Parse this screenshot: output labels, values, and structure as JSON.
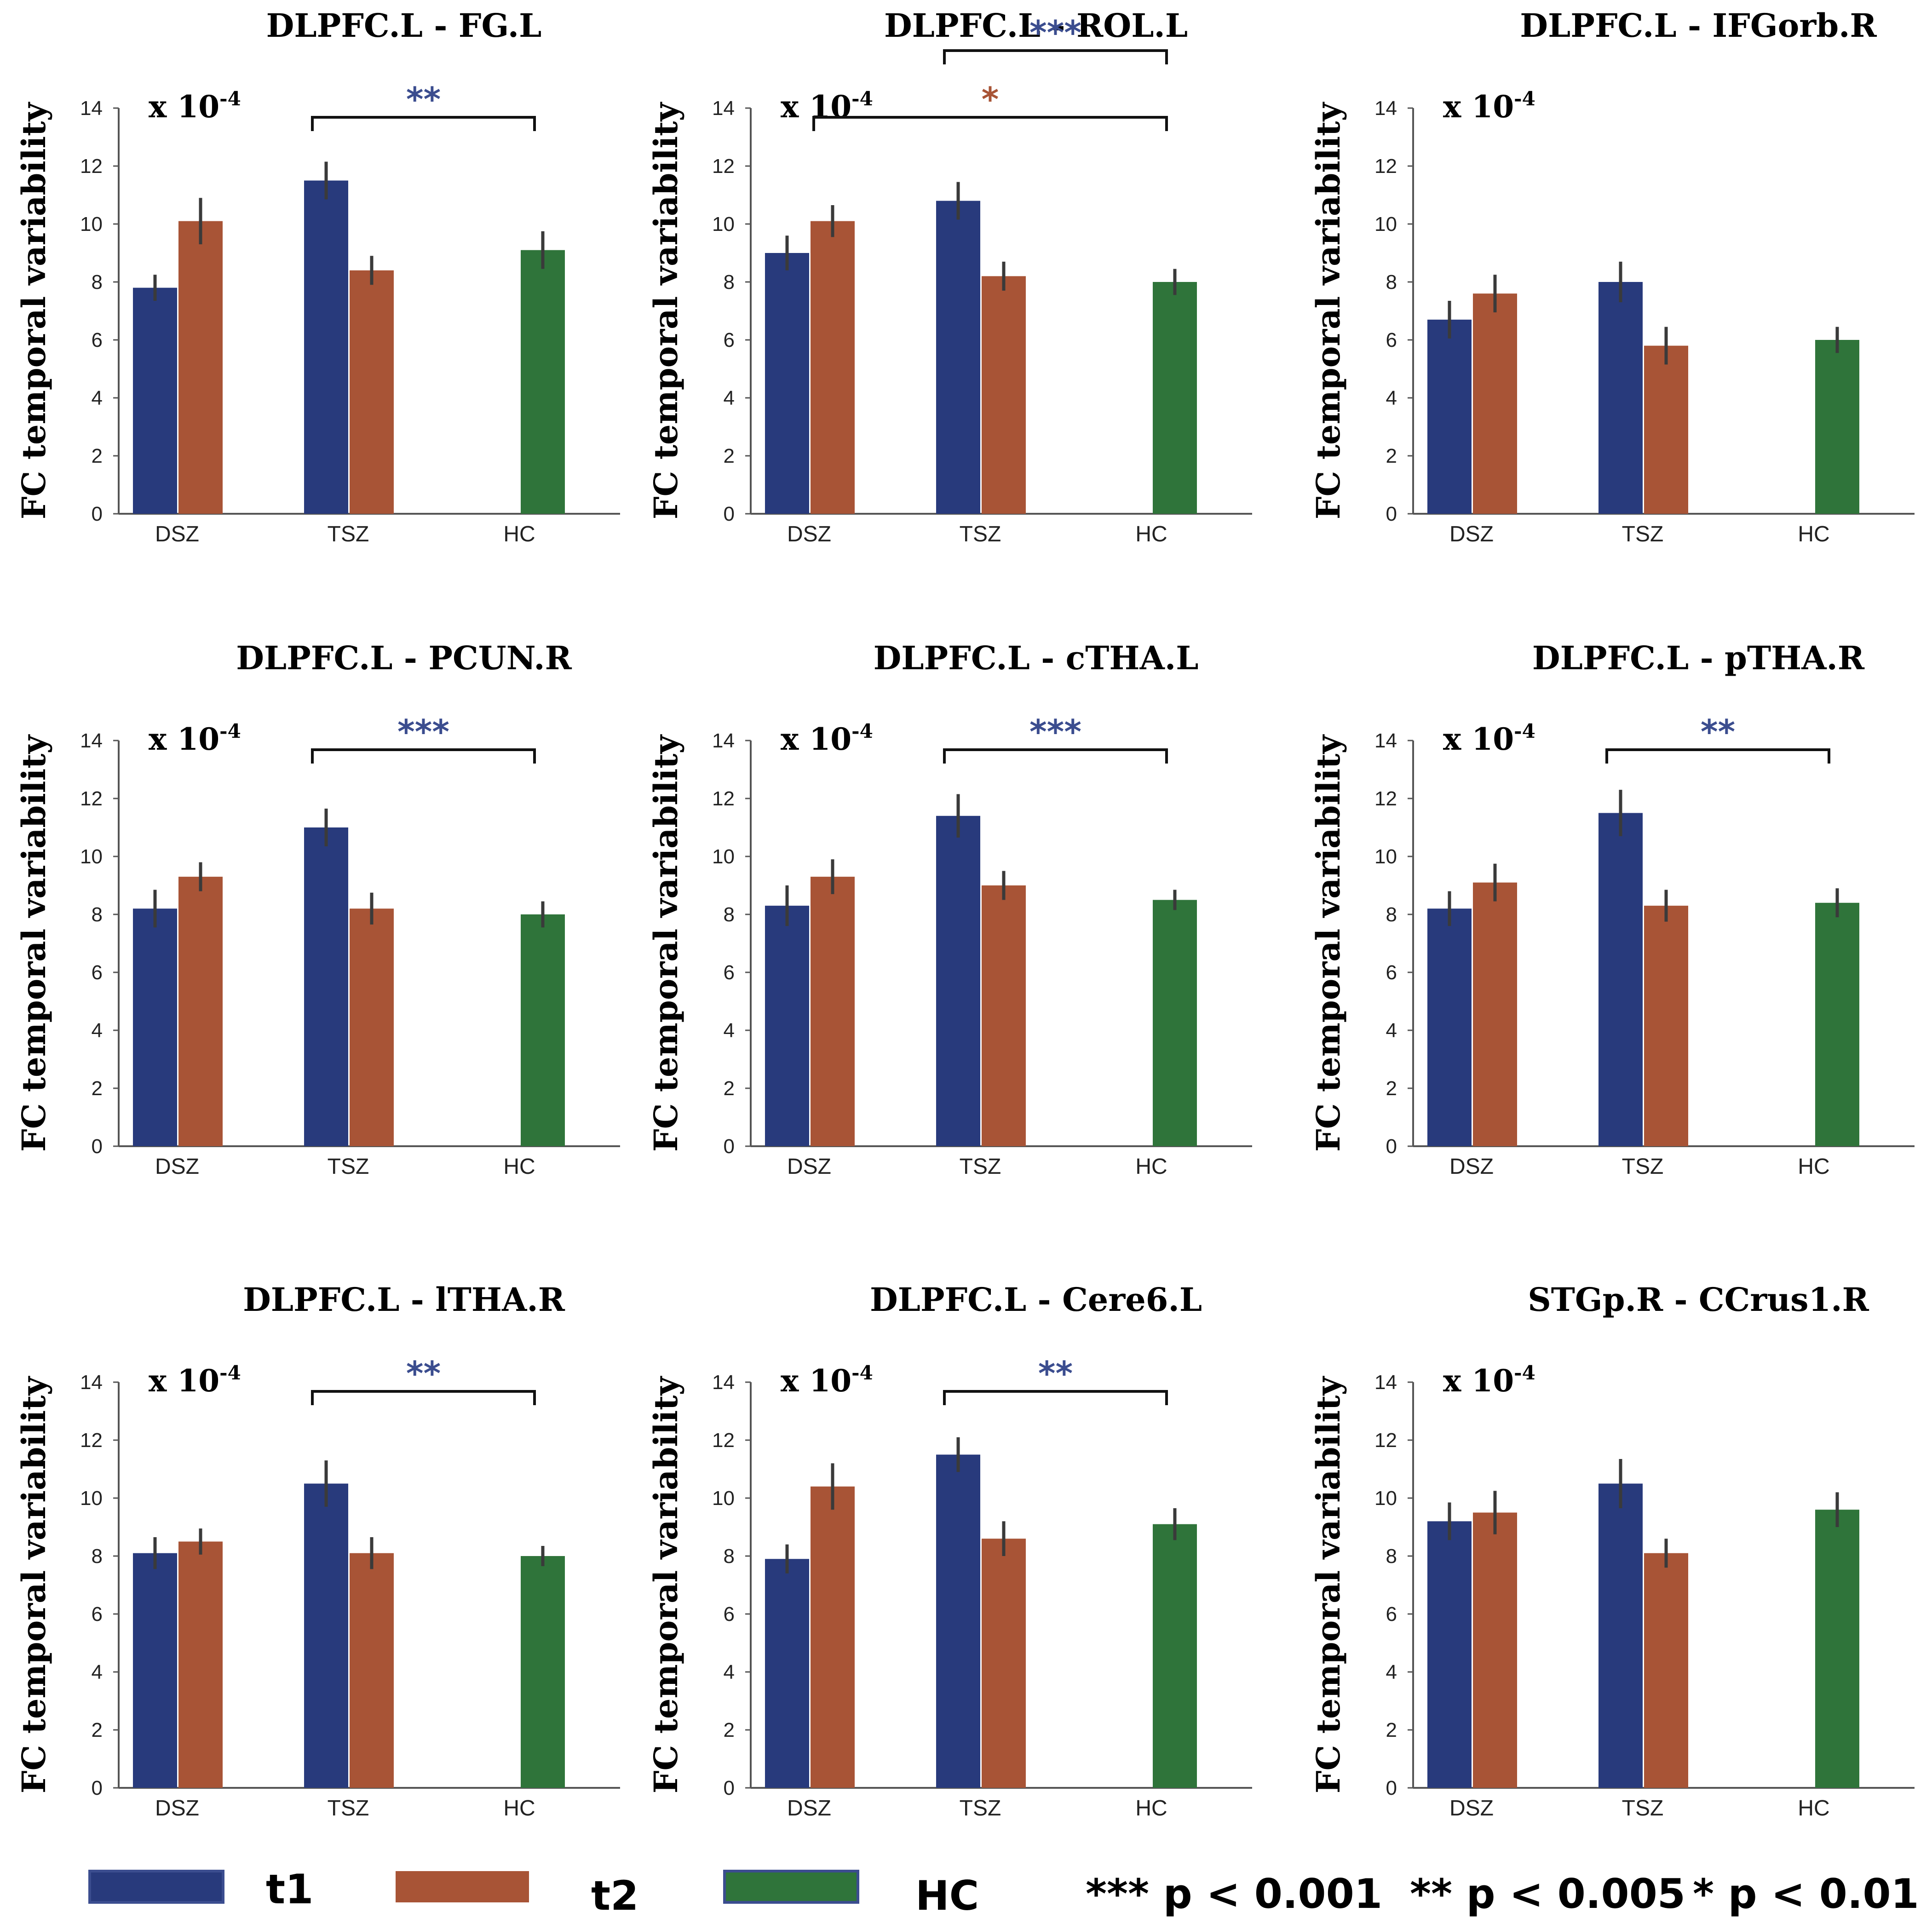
{
  "colors": {
    "t1": "#283a7c",
    "t2": "#a85436",
    "HC": "#2f743a",
    "sig_blue": "#3b4d8f",
    "sig_orange": "#a85436",
    "axis": "#555555",
    "errorbar": "#3a3a3a"
  },
  "scale_label": {
    "base": "x 10",
    "exponent": "-4"
  },
  "chart_data": [
    {
      "type": "bar",
      "title": "DLPFC.L - FG.L",
      "ylabel": "FC temporal variability",
      "ylim": [
        0,
        14
      ],
      "yticks": [
        "0",
        "2",
        "4",
        "6",
        "8",
        "10",
        "12",
        "14"
      ],
      "categories": [
        "DSZ",
        "TSZ",
        "HC"
      ],
      "series": [
        {
          "name": "t1",
          "values": [
            7.8,
            11.5,
            null
          ],
          "errors": [
            0.45,
            0.65,
            null
          ]
        },
        {
          "name": "t2",
          "values": [
            10.1,
            8.4,
            null
          ],
          "errors": [
            0.8,
            0.5,
            null
          ]
        },
        {
          "name": "HC",
          "values": [
            null,
            null,
            9.1
          ],
          "errors": [
            null,
            null,
            0.65
          ]
        }
      ],
      "annotations": [
        {
          "from": "TSZ",
          "to": "HC",
          "label": "**",
          "color": "sig_blue",
          "level": 0
        }
      ]
    },
    {
      "type": "bar",
      "title": "DLPFC.L - ROL.L",
      "ylabel": "FC temporal variability",
      "ylim": [
        0,
        14
      ],
      "yticks": [
        "0",
        "2",
        "4",
        "6",
        "8",
        "10",
        "12",
        "14"
      ],
      "categories": [
        "DSZ",
        "TSZ",
        "HC"
      ],
      "series": [
        {
          "name": "t1",
          "values": [
            9.0,
            10.8,
            null
          ],
          "errors": [
            0.6,
            0.65,
            null
          ]
        },
        {
          "name": "t2",
          "values": [
            10.1,
            8.2,
            null
          ],
          "errors": [
            0.55,
            0.5,
            null
          ]
        },
        {
          "name": "HC",
          "values": [
            null,
            null,
            8.0
          ],
          "errors": [
            null,
            null,
            0.45
          ]
        }
      ],
      "annotations": [
        {
          "from": "TSZ",
          "to": "HC",
          "label": "***",
          "color": "sig_blue",
          "level": 1
        },
        {
          "from": "DSZ",
          "to": "HC",
          "label": "*",
          "color": "sig_orange",
          "level": 0
        }
      ]
    },
    {
      "type": "bar",
      "title": "DLPFC.L - IFGorb.R",
      "ylabel": "FC temporal variability",
      "ylim": [
        0,
        14
      ],
      "yticks": [
        "0",
        "2",
        "4",
        "6",
        "8",
        "10",
        "12",
        "14"
      ],
      "categories": [
        "DSZ",
        "TSZ",
        "HC"
      ],
      "series": [
        {
          "name": "t1",
          "values": [
            6.7,
            8.0,
            null
          ],
          "errors": [
            0.65,
            0.7,
            null
          ]
        },
        {
          "name": "t2",
          "values": [
            7.6,
            5.8,
            null
          ],
          "errors": [
            0.65,
            0.65,
            null
          ]
        },
        {
          "name": "HC",
          "values": [
            null,
            null,
            6.0
          ],
          "errors": [
            null,
            null,
            0.45
          ]
        }
      ],
      "annotations": []
    },
    {
      "type": "bar",
      "title": "DLPFC.L - PCUN.R",
      "ylabel": "FC temporal variability",
      "ylim": [
        0,
        14
      ],
      "yticks": [
        "0",
        "2",
        "4",
        "6",
        "8",
        "10",
        "12",
        "14"
      ],
      "categories": [
        "DSZ",
        "TSZ",
        "HC"
      ],
      "series": [
        {
          "name": "t1",
          "values": [
            8.2,
            11.0,
            null
          ],
          "errors": [
            0.65,
            0.65,
            null
          ]
        },
        {
          "name": "t2",
          "values": [
            9.3,
            8.2,
            null
          ],
          "errors": [
            0.5,
            0.55,
            null
          ]
        },
        {
          "name": "HC",
          "values": [
            null,
            null,
            8.0
          ],
          "errors": [
            null,
            null,
            0.45
          ]
        }
      ],
      "annotations": [
        {
          "from": "TSZ",
          "to": "HC",
          "label": "***",
          "color": "sig_blue",
          "level": 0
        }
      ]
    },
    {
      "type": "bar",
      "title": "DLPFC.L - cTHA.L",
      "ylabel": "FC temporal variability",
      "ylim": [
        0,
        14
      ],
      "yticks": [
        "0",
        "2",
        "4",
        "6",
        "8",
        "10",
        "12",
        "14"
      ],
      "categories": [
        "DSZ",
        "TSZ",
        "HC"
      ],
      "series": [
        {
          "name": "t1",
          "values": [
            8.3,
            11.4,
            null
          ],
          "errors": [
            0.7,
            0.75,
            null
          ]
        },
        {
          "name": "t2",
          "values": [
            9.3,
            9.0,
            null
          ],
          "errors": [
            0.6,
            0.5,
            null
          ]
        },
        {
          "name": "HC",
          "values": [
            null,
            null,
            8.5
          ],
          "errors": [
            null,
            null,
            0.35
          ]
        }
      ],
      "annotations": [
        {
          "from": "TSZ",
          "to": "HC",
          "label": "***",
          "color": "sig_blue",
          "level": 0
        }
      ]
    },
    {
      "type": "bar",
      "title": "DLPFC.L - pTHA.R",
      "ylabel": "FC temporal variability",
      "ylim": [
        0,
        14
      ],
      "yticks": [
        "0",
        "2",
        "4",
        "6",
        "8",
        "10",
        "12",
        "14"
      ],
      "categories": [
        "DSZ",
        "TSZ",
        "HC"
      ],
      "series": [
        {
          "name": "t1",
          "values": [
            8.2,
            11.5,
            null
          ],
          "errors": [
            0.6,
            0.8,
            null
          ]
        },
        {
          "name": "t2",
          "values": [
            9.1,
            8.3,
            null
          ],
          "errors": [
            0.65,
            0.55,
            null
          ]
        },
        {
          "name": "HC",
          "values": [
            null,
            null,
            8.4
          ],
          "errors": [
            null,
            null,
            0.5
          ]
        }
      ],
      "annotations": [
        {
          "from": "TSZ",
          "to": "HC",
          "label": "**",
          "color": "sig_blue",
          "level": 0
        }
      ]
    },
    {
      "type": "bar",
      "title": "DLPFC.L - lTHA.R",
      "ylabel": "FC temporal variability",
      "ylim": [
        0,
        14
      ],
      "yticks": [
        "0",
        "2",
        "4",
        "6",
        "8",
        "10",
        "12",
        "14"
      ],
      "categories": [
        "DSZ",
        "TSZ",
        "HC"
      ],
      "series": [
        {
          "name": "t1",
          "values": [
            8.1,
            10.5,
            null
          ],
          "errors": [
            0.55,
            0.8,
            null
          ]
        },
        {
          "name": "t2",
          "values": [
            8.5,
            8.1,
            null
          ],
          "errors": [
            0.45,
            0.55,
            null
          ]
        },
        {
          "name": "HC",
          "values": [
            null,
            null,
            8.0
          ],
          "errors": [
            null,
            null,
            0.35
          ]
        }
      ],
      "annotations": [
        {
          "from": "TSZ",
          "to": "HC",
          "label": "**",
          "color": "sig_blue",
          "level": 0
        }
      ]
    },
    {
      "type": "bar",
      "title": "DLPFC.L - Cere6.L",
      "ylabel": "FC temporal variability",
      "ylim": [
        0,
        14
      ],
      "yticks": [
        "0",
        "2",
        "4",
        "6",
        "8",
        "10",
        "12",
        "14"
      ],
      "categories": [
        "DSZ",
        "TSZ",
        "HC"
      ],
      "series": [
        {
          "name": "t1",
          "values": [
            7.9,
            11.5,
            null
          ],
          "errors": [
            0.5,
            0.6,
            null
          ]
        },
        {
          "name": "t2",
          "values": [
            10.4,
            8.6,
            null
          ],
          "errors": [
            0.8,
            0.6,
            null
          ]
        },
        {
          "name": "HC",
          "values": [
            null,
            null,
            9.1
          ],
          "errors": [
            null,
            null,
            0.55
          ]
        }
      ],
      "annotations": [
        {
          "from": "TSZ",
          "to": "HC",
          "label": "**",
          "color": "sig_blue",
          "level": 0
        }
      ]
    },
    {
      "type": "bar",
      "title": "STGp.R - CCrus1.R",
      "ylabel": "FC temporal variability",
      "ylim": [
        0,
        14
      ],
      "yticks": [
        "0",
        "2",
        "4",
        "6",
        "8",
        "10",
        "12",
        "14"
      ],
      "categories": [
        "DSZ",
        "TSZ",
        "HC"
      ],
      "series": [
        {
          "name": "t1",
          "values": [
            9.2,
            10.5,
            null
          ],
          "errors": [
            0.65,
            0.85,
            null
          ]
        },
        {
          "name": "t2",
          "values": [
            9.5,
            8.1,
            null
          ],
          "errors": [
            0.75,
            0.5,
            null
          ]
        },
        {
          "name": "HC",
          "values": [
            null,
            null,
            9.6
          ],
          "errors": [
            null,
            null,
            0.6
          ]
        }
      ],
      "annotations": []
    }
  ],
  "legend": {
    "items": [
      {
        "key": "t1",
        "label": "t1"
      },
      {
        "key": "t2",
        "label": "t2"
      },
      {
        "key": "HC",
        "label": "HC"
      }
    ],
    "significance": [
      "*** p < 0.001",
      "** p < 0.005",
      "* p < 0.01"
    ]
  }
}
